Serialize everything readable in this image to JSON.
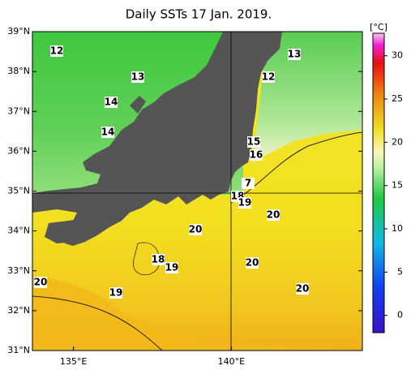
{
  "title": "Daily SSTs 17 Jan. 2019.",
  "map": {
    "lon_range": [
      133.7,
      144.15
    ],
    "lat_range": [
      31,
      39
    ],
    "lon_ticks": [
      {
        "value": 135,
        "label": "135°E"
      },
      {
        "value": 140,
        "label": "140°E"
      }
    ],
    "lat_ticks": [
      {
        "value": 39,
        "label": "39°N"
      },
      {
        "value": 38,
        "label": "38°N"
      },
      {
        "value": 37,
        "label": "37°N"
      },
      {
        "value": 36,
        "label": "36°N"
      },
      {
        "value": 35,
        "label": "35°N"
      },
      {
        "value": 34,
        "label": "34°N"
      },
      {
        "value": 33,
        "label": "33°N"
      },
      {
        "value": 32,
        "label": "32°N"
      },
      {
        "value": 31,
        "label": "31°N"
      }
    ],
    "contour_labels": [
      "12",
      "13",
      "14",
      "14",
      "13",
      "12",
      "15",
      "16",
      "7",
      "18",
      "19",
      "20",
      "20",
      "18",
      "19",
      "20",
      "20",
      "19",
      "20"
    ]
  },
  "colorbar": {
    "unit": "[°C]",
    "range": [
      -2,
      32.6
    ],
    "ticks": [
      30,
      25,
      20,
      15,
      10,
      5,
      0
    ]
  }
}
